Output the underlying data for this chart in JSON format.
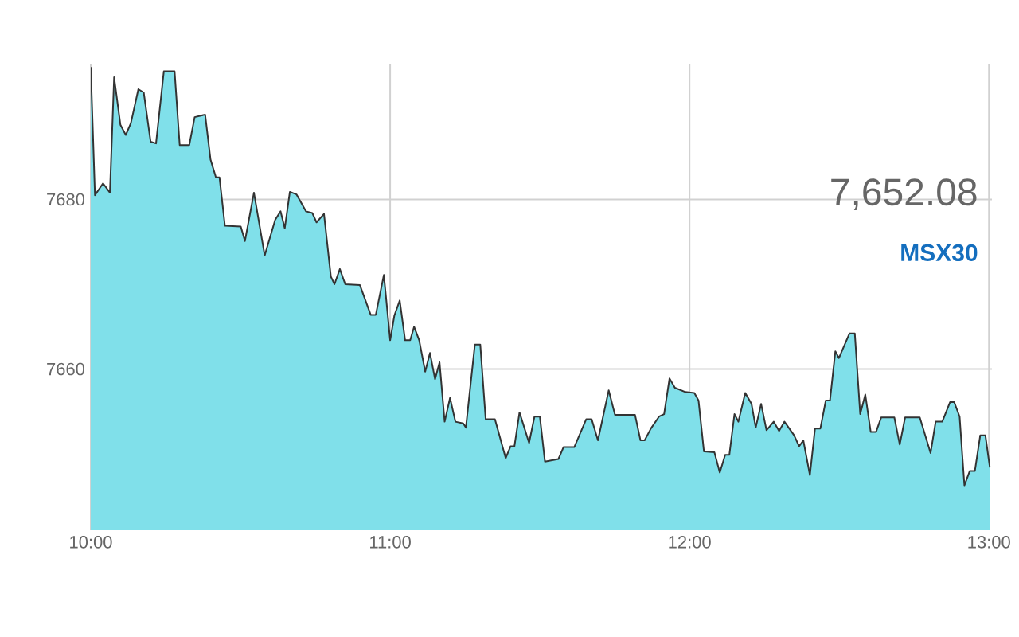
{
  "chart_data": {
    "type": "area",
    "xlim": [
      10,
      13.01
    ],
    "ylim": [
      7641,
      7696
    ],
    "xticks": [
      {
        "value": 10,
        "label": "10:00"
      },
      {
        "value": 11,
        "label": "11:00"
      },
      {
        "value": 12,
        "label": "12:00"
      },
      {
        "value": 13,
        "label": "13:00"
      }
    ],
    "yticks": [
      7660,
      7680
    ],
    "grid": true,
    "annotations": [
      "7,652.08",
      "MSX30"
    ],
    "x": [
      10.0,
      10.014,
      10.041,
      10.064,
      10.078,
      10.099,
      10.117,
      10.134,
      10.159,
      10.177,
      10.2,
      10.218,
      10.244,
      10.28,
      10.297,
      10.329,
      10.347,
      10.382,
      10.4,
      10.418,
      10.43,
      10.448,
      10.501,
      10.515,
      10.545,
      10.581,
      10.616,
      10.634,
      10.648,
      10.665,
      10.687,
      10.719,
      10.74,
      10.754,
      10.779,
      10.802,
      10.814,
      10.832,
      10.85,
      10.899,
      10.935,
      10.952,
      10.979,
      11.0,
      11.014,
      11.032,
      11.05,
      11.067,
      11.08,
      11.097,
      11.117,
      11.133,
      11.15,
      11.165,
      11.182,
      11.2,
      11.218,
      11.244,
      11.253,
      11.283,
      11.301,
      11.319,
      11.35,
      11.386,
      11.402,
      11.415,
      11.432,
      11.464,
      11.482,
      11.5,
      11.517,
      11.562,
      11.579,
      11.615,
      11.655,
      11.673,
      11.694,
      11.73,
      11.751,
      11.818,
      11.836,
      11.85,
      11.871,
      11.898,
      11.915,
      11.933,
      11.951,
      11.986,
      12.016,
      12.03,
      12.048,
      12.083,
      12.101,
      12.119,
      12.133,
      12.15,
      12.163,
      12.186,
      12.207,
      12.221,
      12.239,
      12.257,
      12.281,
      12.299,
      12.317,
      12.349,
      12.366,
      12.38,
      12.402,
      12.419,
      12.437,
      12.455,
      12.469,
      12.487,
      12.499,
      12.534,
      12.552,
      12.57,
      12.587,
      12.605,
      12.623,
      12.64,
      12.684,
      12.702,
      12.72,
      12.769,
      12.805,
      12.822,
      12.844,
      12.87,
      12.884,
      12.902,
      12.918,
      12.936,
      12.953,
      12.971,
      12.988,
      13.003
    ],
    "series": [
      {
        "color": "#80e0ea",
        "values": [
          7695.6,
          7680.5,
          7681.9,
          7680.8,
          7694.4,
          7688.8,
          7687.6,
          7689.0,
          7693.0,
          7692.6,
          7686.8,
          7686.6,
          7695.1,
          7695.1,
          7686.4,
          7686.4,
          7689.7,
          7690.0,
          7684.7,
          7682.6,
          7682.6,
          7676.9,
          7676.8,
          7675.1,
          7680.8,
          7673.4,
          7677.6,
          7678.6,
          7676.6,
          7680.9,
          7680.6,
          7678.6,
          7678.4,
          7677.3,
          7678.3,
          7670.9,
          7670.0,
          7671.8,
          7670.0,
          7669.9,
          7666.4,
          7666.4,
          7671.1,
          7663.4,
          7666.3,
          7668.1,
          7663.4,
          7663.4,
          7665.0,
          7663.4,
          7659.7,
          7661.9,
          7658.8,
          7660.8,
          7653.8,
          7656.6,
          7653.8,
          7653.6,
          7653.1,
          7662.9,
          7662.9,
          7654.1,
          7654.1,
          7649.5,
          7650.9,
          7650.9,
          7654.9,
          7651.3,
          7654.4,
          7654.4,
          7649.1,
          7649.4,
          7650.8,
          7650.8,
          7654.1,
          7654.1,
          7651.6,
          7657.5,
          7654.6,
          7654.6,
          7651.6,
          7651.6,
          7653.0,
          7654.4,
          7654.7,
          7658.9,
          7657.8,
          7657.3,
          7657.2,
          7656.3,
          7650.3,
          7650.2,
          7647.8,
          7649.9,
          7649.9,
          7654.7,
          7653.8,
          7657.2,
          7655.9,
          7653.1,
          7655.9,
          7652.8,
          7653.8,
          7652.7,
          7653.8,
          7652.2,
          7650.9,
          7651.6,
          7647.5,
          7653.0,
          7653.0,
          7656.3,
          7656.3,
          7662.1,
          7661.3,
          7664.2,
          7664.2,
          7654.7,
          7657.0,
          7652.6,
          7652.6,
          7654.3,
          7654.3,
          7651.1,
          7654.3,
          7654.3,
          7650.1,
          7653.8,
          7653.8,
          7656.1,
          7656.1,
          7654.4,
          7646.3,
          7648.0,
          7648.0,
          7652.2,
          7652.2,
          7648.4
        ]
      }
    ]
  }
}
